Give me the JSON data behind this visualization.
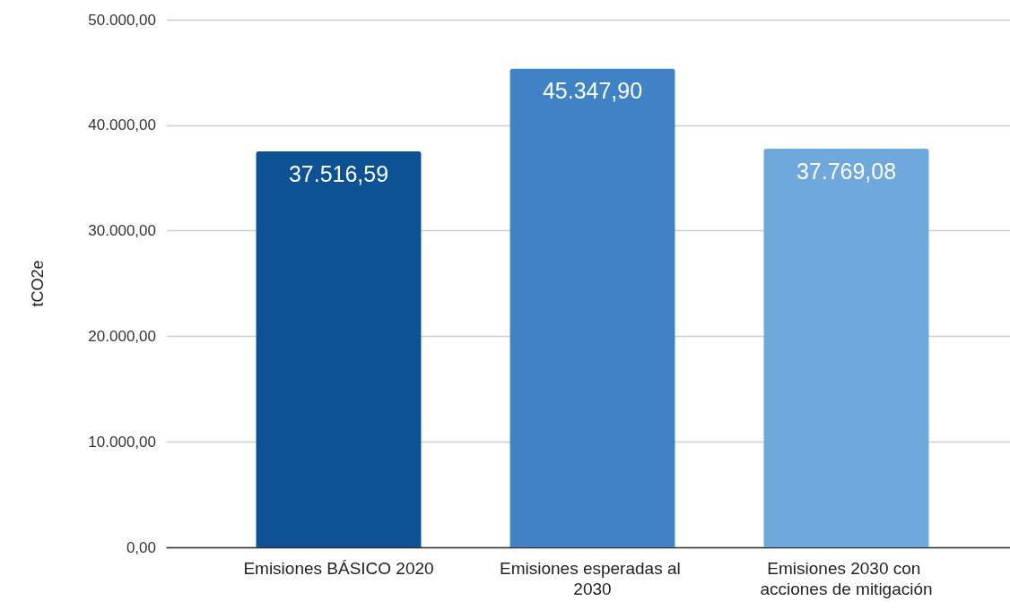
{
  "chart_data": {
    "type": "bar",
    "ylabel": "tCO2e",
    "categories": [
      "Emisiones BÁSICO 2020",
      "Emisiones esperadas al 2030",
      "Emisiones 2030 con acciones de mitigación"
    ],
    "values": [
      37516.59,
      45347.9,
      37769.08
    ],
    "colors": [
      "#0d5295",
      "#3f83c6",
      "#6fa8dc"
    ],
    "value_labels": [
      "37.516,59",
      "45.347,90",
      "37.769,08"
    ],
    "ylim": [
      0,
      50000
    ],
    "yticks": [
      {
        "value": 0,
        "label": "0,00"
      },
      {
        "value": 10000,
        "label": "10.000,00"
      },
      {
        "value": 20000,
        "label": "20.000,00"
      },
      {
        "value": 30000,
        "label": "30.000,00"
      },
      {
        "value": 40000,
        "label": "40.000,00"
      },
      {
        "value": 50000,
        "label": "50.000,00"
      }
    ],
    "grid": "y"
  }
}
